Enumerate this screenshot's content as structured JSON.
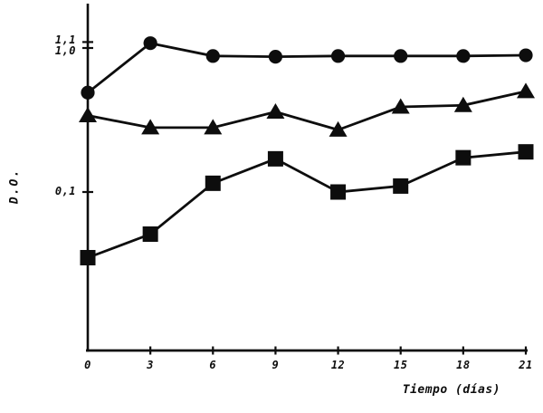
{
  "figure": {
    "background": "#ffffff",
    "ink_color": "#0d0d0d"
  },
  "chart_data": {
    "type": "line",
    "title": "",
    "xlabel": "Tiempo (días)",
    "ylabel": "D.O.",
    "yscale": "log",
    "grid": false,
    "legend_position": "none",
    "x": [
      0,
      3,
      6,
      9,
      12,
      15,
      18,
      21
    ],
    "xtick_labels": [
      "0",
      "3",
      "6",
      "9",
      "12",
      "15",
      "18",
      "21"
    ],
    "xlim": [
      0,
      21
    ],
    "ylim": [
      0.008,
      2.0
    ],
    "yticks": [
      {
        "label": "1,1",
        "value": 1.1
      },
      {
        "label": "1,0",
        "value": 1.0
      },
      {
        "label": "0,1",
        "value": 0.1
      }
    ],
    "series": [
      {
        "name": "serie-circulo",
        "marker": "circle",
        "color": "#0d0d0d",
        "values": [
          0.49,
          1.08,
          0.88,
          0.87,
          0.88,
          0.88,
          0.88,
          0.89
        ]
      },
      {
        "name": "serie-triangulo",
        "marker": "triangle",
        "color": "#0d0d0d",
        "values": [
          0.34,
          0.28,
          0.28,
          0.36,
          0.27,
          0.39,
          0.4,
          0.5
        ]
      },
      {
        "name": "serie-cuadrado",
        "marker": "square",
        "color": "#0d0d0d",
        "values": [
          0.035,
          0.051,
          0.115,
          0.17,
          0.1,
          0.11,
          0.173,
          0.19
        ]
      }
    ]
  }
}
